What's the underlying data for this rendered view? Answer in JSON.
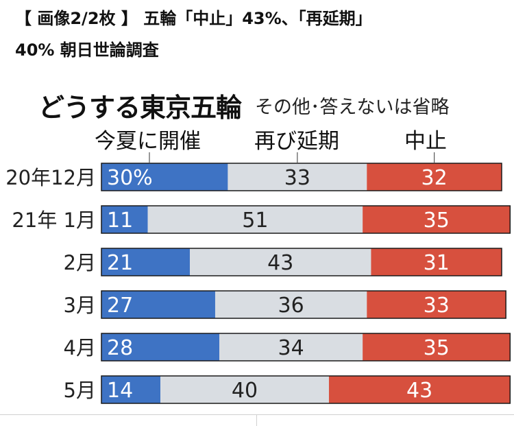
{
  "headline": {
    "line1": "【 画像2/2枚 】 五輪「中止」43%、「再延期」",
    "line2": "40% 朝日世論調査"
  },
  "colors": {
    "open": "#3e73c4",
    "postpone": "#d9dde2",
    "cancel": "#d7503e",
    "outline": "#1a1a1a"
  },
  "chart_data": {
    "type": "bar",
    "orientation": "horizontal-stacked-100",
    "title": "どうする東京五輪",
    "note": "その他･答えないは省略",
    "categories": [
      "20年12月",
      "21年 1月",
      "2月",
      "3月",
      "4月",
      "5月"
    ],
    "series": [
      {
        "name": "今夏に開催",
        "values": [
          30,
          11,
          21,
          27,
          28,
          14
        ],
        "labels": [
          "30%",
          "11",
          "21",
          "27",
          "28",
          "14"
        ]
      },
      {
        "name": "再び延期",
        "values": [
          33,
          51,
          43,
          36,
          34,
          40
        ],
        "labels": [
          "33",
          "51",
          "43",
          "36",
          "34",
          "40"
        ]
      },
      {
        "name": "中止",
        "values": [
          32,
          35,
          31,
          33,
          35,
          43
        ],
        "labels": [
          "32",
          "35",
          "31",
          "33",
          "35",
          "43"
        ]
      }
    ]
  }
}
